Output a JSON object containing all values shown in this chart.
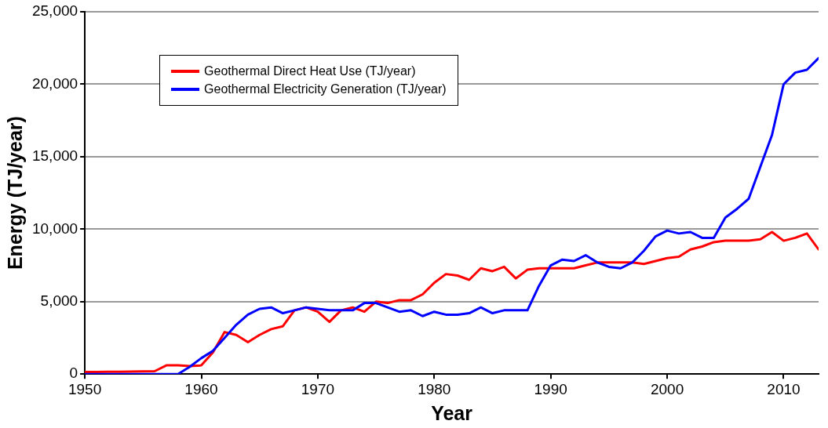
{
  "chart_data": {
    "type": "line",
    "xlabel": "Year",
    "ylabel": "Energy (TJ/year)",
    "x": [
      1950,
      1951,
      1952,
      1953,
      1954,
      1955,
      1956,
      1957,
      1958,
      1959,
      1960,
      1961,
      1962,
      1963,
      1964,
      1965,
      1966,
      1967,
      1968,
      1969,
      1970,
      1971,
      1972,
      1973,
      1974,
      1975,
      1976,
      1977,
      1978,
      1979,
      1980,
      1981,
      1982,
      1983,
      1984,
      1985,
      1986,
      1987,
      1988,
      1989,
      1990,
      1991,
      1992,
      1993,
      1994,
      1995,
      1996,
      1997,
      1998,
      1999,
      2000,
      2001,
      2002,
      2003,
      2004,
      2005,
      2006,
      2007,
      2008,
      2009,
      2010,
      2011,
      2012,
      2013
    ],
    "series": [
      {
        "name": "Geothermal Direct Heat Use (TJ/year)",
        "color": "#ff0000",
        "values": [
          150,
          150,
          160,
          160,
          170,
          180,
          200,
          600,
          600,
          550,
          600,
          1500,
          2900,
          2700,
          2200,
          2700,
          3100,
          3300,
          4400,
          4600,
          4300,
          3600,
          4400,
          4600,
          4300,
          5000,
          4900,
          5100,
          5100,
          5500,
          6300,
          6900,
          6800,
          6500,
          7300,
          7100,
          7400,
          6600,
          7200,
          7300,
          7300,
          7300,
          7300,
          7500,
          7700,
          7700,
          7700,
          7700,
          7600,
          7800,
          8000,
          8100,
          8600,
          8800,
          9100,
          9200,
          9200,
          9200,
          9300,
          9800,
          9200,
          9400,
          9700,
          8600
        ]
      },
      {
        "name": "Geothermal Electricity Generation (TJ/year)",
        "color": "#0000ff",
        "values": [
          0,
          0,
          0,
          0,
          0,
          0,
          0,
          0,
          0,
          500,
          1100,
          1600,
          2500,
          3400,
          4100,
          4500,
          4600,
          4200,
          4400,
          4600,
          4500,
          4400,
          4400,
          4400,
          4900,
          4900,
          4600,
          4300,
          4400,
          4000,
          4300,
          4100,
          4100,
          4200,
          4600,
          4200,
          4400,
          4400,
          4400,
          6100,
          7500,
          7900,
          7800,
          8200,
          7700,
          7400,
          7300,
          7700,
          8500,
          9500,
          9900,
          9700,
          9800,
          9400,
          9400,
          10800,
          11400,
          12100,
          14300,
          16500,
          20000,
          20800,
          21000,
          21800
        ]
      }
    ],
    "xlim": [
      1950,
      2013
    ],
    "xticks": [
      1950,
      1960,
      1970,
      1980,
      1990,
      2000,
      2010
    ],
    "ylim": [
      0,
      25000
    ],
    "yticks": [
      0,
      {
        "value": 5000,
        "label": "5,000"
      },
      {
        "value": 10000,
        "label": "10,000"
      },
      {
        "value": 15000,
        "label": "15,000"
      },
      {
        "value": 20000,
        "label": "20,000"
      },
      {
        "value": 25000,
        "label": "25,000"
      }
    ],
    "grid": "y",
    "legend": "top left",
    "marker": "none",
    "line_style": "solid"
  }
}
